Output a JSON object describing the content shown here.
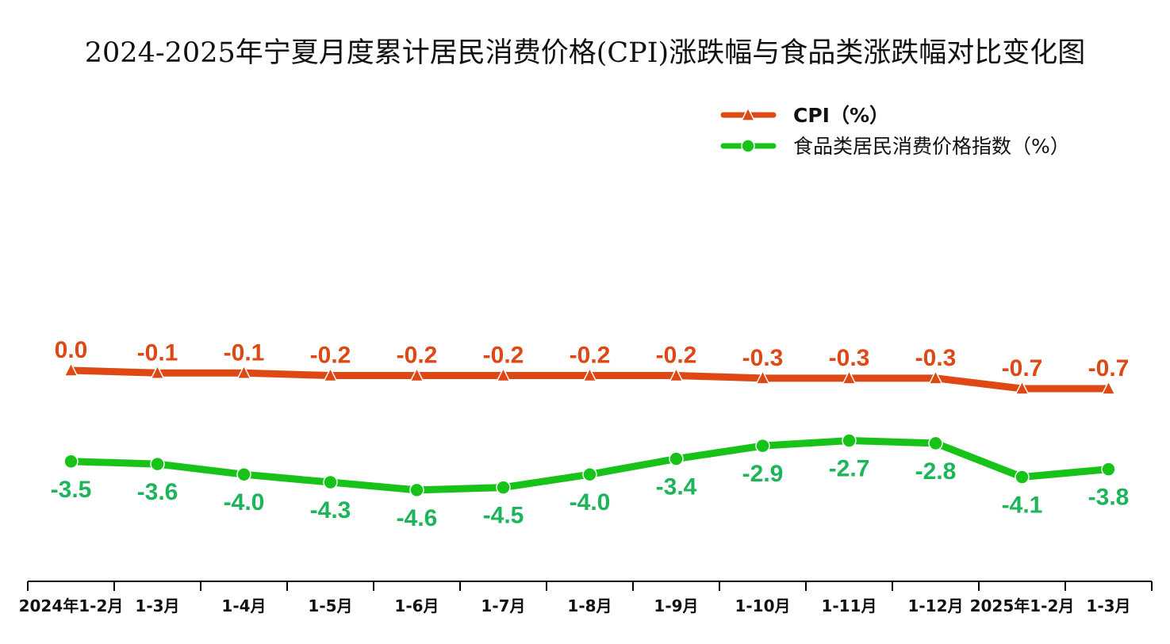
{
  "chart_data": {
    "type": "line",
    "title": "2024-2025年宁夏月度累计居民消费价格(CPI)涨跌幅与食品类涨跌幅对比变化图",
    "categories": [
      "2024年1-2月",
      "1-3月",
      "1-4月",
      "1-5月",
      "1-6月",
      "1-7月",
      "1-8月",
      "1-9月",
      "1-10月",
      "1-11月",
      "1-12月",
      "2025年1-2月",
      "1-3月"
    ],
    "series": [
      {
        "name": "CPI（%）",
        "color": "#dd4814",
        "marker": "triangle",
        "values": [
          0.0,
          -0.1,
          -0.1,
          -0.2,
          -0.2,
          -0.2,
          -0.2,
          -0.2,
          -0.3,
          -0.3,
          -0.3,
          -0.7,
          -0.7
        ],
        "labels": [
          "0.0",
          "-0.1",
          "-0.1",
          "-0.2",
          "-0.2",
          "-0.2",
          "-0.2",
          "-0.2",
          "-0.3",
          "-0.3",
          "-0.3",
          "-0.7",
          "-0.7"
        ]
      },
      {
        "name": "食品类居民消费价格指数（%）",
        "color": "#17c219",
        "label_color": "#1db45a",
        "marker": "circle",
        "values": [
          -3.5,
          -3.6,
          -4.0,
          -4.3,
          -4.6,
          -4.5,
          -4.0,
          -3.4,
          -2.9,
          -2.7,
          -2.8,
          -4.1,
          -3.8
        ],
        "labels": [
          "-3.5",
          "-3.6",
          "-4.0",
          "-4.3",
          "-4.6",
          "-4.5",
          "-4.0",
          "-3.4",
          "-2.9",
          "-2.7",
          "-2.8",
          "-4.1",
          "-3.8"
        ]
      }
    ],
    "legend_position": "top-right",
    "grid": false
  }
}
